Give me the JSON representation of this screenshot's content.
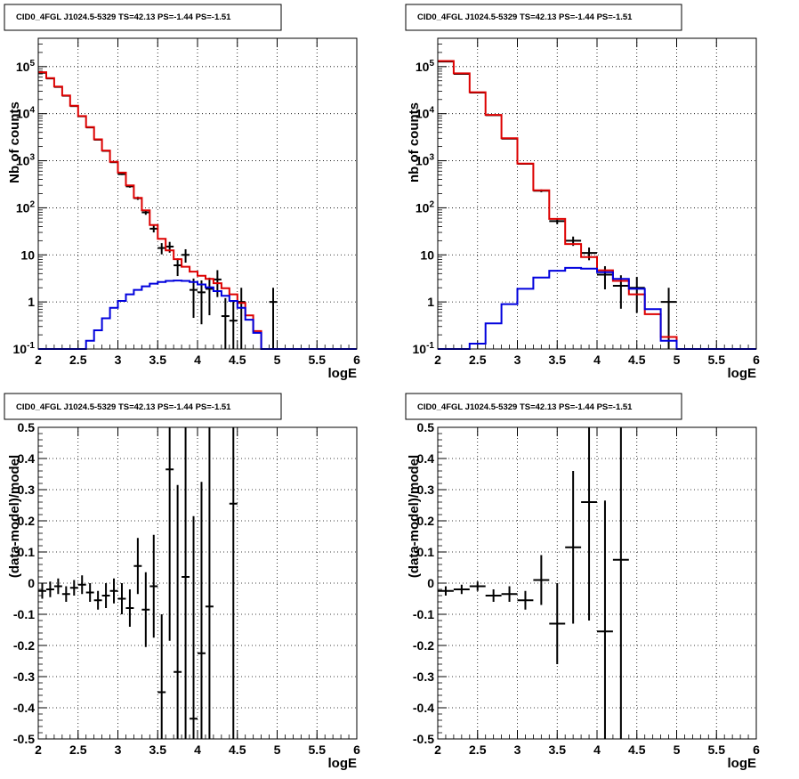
{
  "chart_data": [
    {
      "type": "histogram-log",
      "title": "CID0_4FGL J1024.5-5329 TS=42.13 PS=-1.44 PS=-1.51",
      "xlabel": "logE",
      "ylabel": "Nb of counts",
      "xlim": [
        2,
        6
      ],
      "ylim": [
        0.1,
        400000
      ],
      "log_y": true,
      "grid": true,
      "x_ticks": [
        "2",
        "2.5",
        "3",
        "3.5",
        "4",
        "4.5",
        "5",
        "5.5",
        "6"
      ],
      "y_ticks": [
        "10^-1",
        "1",
        "10",
        "10^2",
        "10^3",
        "10^4",
        "10^5"
      ],
      "bin_width": 0.1,
      "series": [
        {
          "role": "data",
          "color": "#000000",
          "x": [
            2.05,
            2.15,
            2.25,
            2.35,
            2.45,
            2.55,
            2.65,
            2.75,
            2.85,
            2.95,
            3.05,
            3.15,
            3.25,
            3.35,
            3.45,
            3.55,
            3.65,
            3.75,
            3.85,
            3.95,
            4.05,
            4.15,
            4.25,
            4.35,
            4.45,
            4.55,
            4.95
          ],
          "y": [
            74000,
            56000,
            37000,
            24000,
            14500,
            8800,
            5100,
            2800,
            1620,
            930,
            520,
            285,
            160,
            80,
            36,
            14,
            15,
            6,
            10,
            1.8,
            1.6,
            1.9,
            3,
            0.5,
            0.4,
            1,
            1
          ]
        },
        {
          "role": "total model",
          "color": "#dd0000",
          "edges_from": 2,
          "bin_width": 0.1,
          "values": [
            76000,
            57000,
            37500,
            24300,
            14700,
            8900,
            5200,
            2850,
            1650,
            950,
            560,
            300,
            162,
            88,
            43,
            22,
            12.5,
            8.1,
            5.6,
            4.4,
            3.6,
            3.1,
            2.5,
            1.95,
            1.45,
            0.95,
            0.52,
            0.24,
            0.1,
            0.1,
            0.1,
            0.1,
            0.1,
            0.1,
            0.1,
            0.1,
            0.1,
            0.1,
            0.1,
            0.1
          ]
        },
        {
          "role": "source model",
          "color": "#0000dd",
          "edges_from": 2,
          "bin_width": 0.1,
          "values": [
            0.1,
            0.1,
            0.1,
            0.1,
            0.1,
            0.1,
            0.15,
            0.25,
            0.45,
            0.75,
            1.05,
            1.45,
            1.8,
            2.15,
            2.45,
            2.65,
            2.8,
            2.85,
            2.8,
            2.65,
            2.35,
            2.05,
            1.7,
            1.35,
            1.05,
            0.75,
            0.42,
            0.22,
            0.1,
            0.1,
            0.1,
            0.1,
            0.1,
            0.1,
            0.1,
            0.1,
            0.1,
            0.1,
            0.1,
            0.1
          ]
        }
      ]
    },
    {
      "type": "histogram-log",
      "title": "CID0_4FGL J1024.5-5329 TS=42.13 PS=-1.44 PS=-1.51",
      "xlabel": "logE",
      "ylabel": "nb of counts",
      "xlim": [
        2,
        6
      ],
      "ylim": [
        0.1,
        400000
      ],
      "log_y": true,
      "grid": true,
      "x_ticks": [
        "2",
        "2.5",
        "3",
        "3.5",
        "4",
        "4.5",
        "5",
        "5.5",
        "6"
      ],
      "y_ticks": [
        "10^-1",
        "1",
        "10",
        "10^2",
        "10^3",
        "10^4",
        "10^5"
      ],
      "bin_width": 0.2,
      "series": [
        {
          "role": "data",
          "color": "#000000",
          "x": [
            2.1,
            2.3,
            2.5,
            2.7,
            2.9,
            3.1,
            3.3,
            3.5,
            3.7,
            3.9,
            4.1,
            4.3,
            4.5,
            4.9
          ],
          "y": [
            128000,
            70000,
            28000,
            9300,
            2950,
            860,
            230,
            52,
            20,
            11,
            3.8,
            2.2,
            2,
            1
          ]
        },
        {
          "role": "total model",
          "color": "#dd0000",
          "edges_from": 2,
          "bin_width": 0.2,
          "values": [
            132000,
            72000,
            28500,
            9400,
            3000,
            870,
            235,
            58,
            17,
            9,
            4.7,
            2.8,
            1.45,
            0.55,
            0.18,
            0.1,
            0.1,
            0.1,
            0.1,
            0.1
          ]
        },
        {
          "role": "source model",
          "color": "#0000dd",
          "edges_from": 2,
          "bin_width": 0.2,
          "values": [
            0.1,
            0.1,
            0.13,
            0.35,
            0.9,
            1.9,
            3.3,
            4.6,
            5.3,
            5.1,
            4.3,
            3.1,
            1.9,
            0.7,
            0.15,
            0.1,
            0.1,
            0.1,
            0.1,
            0.1
          ]
        }
      ]
    },
    {
      "type": "scatter-errorbars",
      "title": "CID0_4FGL J1024.5-5329 TS=42.13 PS=-1.44 PS=-1.51",
      "xlabel": "logE",
      "ylabel": "(data-model)/model",
      "xlim": [
        2,
        6
      ],
      "ylim": [
        -0.5,
        0.5
      ],
      "grid": true,
      "x_ticks": [
        "2",
        "2.5",
        "3",
        "3.5",
        "4",
        "4.5",
        "5",
        "5.5",
        "6"
      ],
      "y_ticks": [
        "-0.5",
        "-0.4",
        "-0.3",
        "-0.2",
        "-0.1",
        "0",
        "0.1",
        "0.2",
        "0.3",
        "0.4",
        "0.5"
      ],
      "bin_width": 0.1,
      "series": [
        {
          "role": "residuals",
          "color": "#000000",
          "x": [
            2.05,
            2.15,
            2.25,
            2.35,
            2.45,
            2.55,
            2.65,
            2.75,
            2.85,
            2.95,
            3.05,
            3.15,
            3.25,
            3.35,
            3.45,
            3.55,
            3.65,
            3.75,
            3.85,
            3.95,
            4.05,
            4.15,
            4.45
          ],
          "y": [
            -0.025,
            -0.02,
            -0.01,
            -0.035,
            -0.015,
            -0.005,
            -0.03,
            -0.055,
            -0.04,
            -0.025,
            -0.05,
            -0.08,
            0.055,
            -0.085,
            -0.01,
            -0.35,
            0.365,
            -0.285,
            0.02,
            -0.435,
            -0.225,
            -0.075,
            0.255
          ],
          "err": [
            0.025,
            0.025,
            0.025,
            0.025,
            0.025,
            0.03,
            0.03,
            0.03,
            0.04,
            0.04,
            0.05,
            0.06,
            0.09,
            0.12,
            0.165,
            0.25,
            0.55,
            0.6,
            0.7,
            0.65,
            0.55,
            0.6,
            1.2
          ]
        }
      ]
    },
    {
      "type": "scatter-errorbars",
      "title": "CID0_4FGL J1024.5-5329 TS=42.13 PS=-1.44 PS=-1.51",
      "xlabel": "logE",
      "ylabel": "(data-model)/model",
      "xlim": [
        2,
        6
      ],
      "ylim": [
        -0.5,
        0.5
      ],
      "grid": true,
      "x_ticks": [
        "2",
        "2.5",
        "3",
        "3.5",
        "4",
        "4.5",
        "5",
        "5.5",
        "6"
      ],
      "y_ticks": [
        "-0.5",
        "-0.4",
        "-0.3",
        "-0.2",
        "-0.1",
        "0",
        "0.1",
        "0.2",
        "0.3",
        "0.4",
        "0.5"
      ],
      "bin_width": 0.2,
      "series": [
        {
          "role": "residuals",
          "color": "#000000",
          "x": [
            2.1,
            2.3,
            2.5,
            2.7,
            2.9,
            3.1,
            3.3,
            3.5,
            3.7,
            3.9,
            4.1,
            4.3
          ],
          "y": [
            -0.025,
            -0.02,
            -0.01,
            -0.04,
            -0.035,
            -0.055,
            0.01,
            -0.13,
            0.115,
            0.26,
            -0.155,
            0.075
          ],
          "err": [
            0.015,
            0.015,
            0.015,
            0.02,
            0.025,
            0.03,
            0.08,
            0.13,
            0.245,
            0.38,
            0.42,
            0.6
          ]
        }
      ]
    }
  ]
}
